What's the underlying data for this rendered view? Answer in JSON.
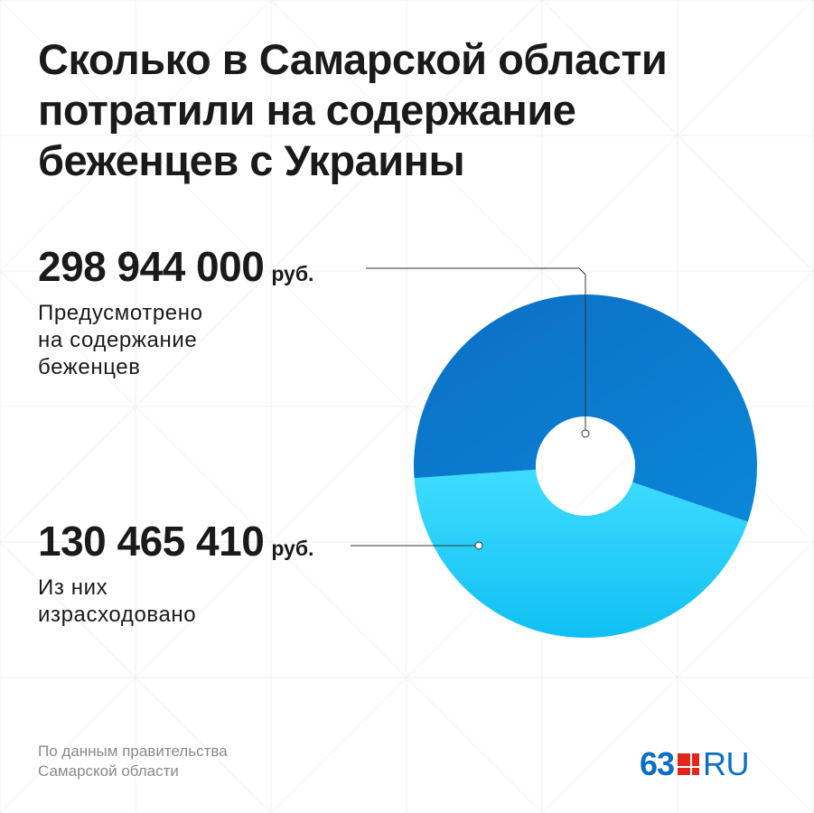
{
  "title_lines": [
    "Сколько в Самарской области",
    "потратили на содержание",
    "беженцев с Украины"
  ],
  "total": {
    "value": "298 944 000",
    "unit": "руб.",
    "desc_lines": [
      "Предусмотрено",
      "на содержание",
      "беженцев"
    ]
  },
  "spent": {
    "value": "130 465 410",
    "unit": "руб.",
    "desc_lines": [
      "Из них",
      "израсходовано"
    ]
  },
  "source_lines": [
    "По данным правительства",
    "Самарской области"
  ],
  "logo": {
    "number": "63",
    "suffix": "RU"
  },
  "colors": {
    "remaining": "#0a78cc",
    "spent": "#2cc8f5",
    "brand_blue": "#0a6fc2",
    "brand_red": "#e2261c"
  },
  "chart_data": {
    "type": "pie",
    "variant": "donut",
    "unit": "руб.",
    "total": 298944000,
    "slices": [
      {
        "label": "Из них израсходовано",
        "value": 130465410
      },
      {
        "label": "",
        "value": 168478590
      }
    ]
  }
}
